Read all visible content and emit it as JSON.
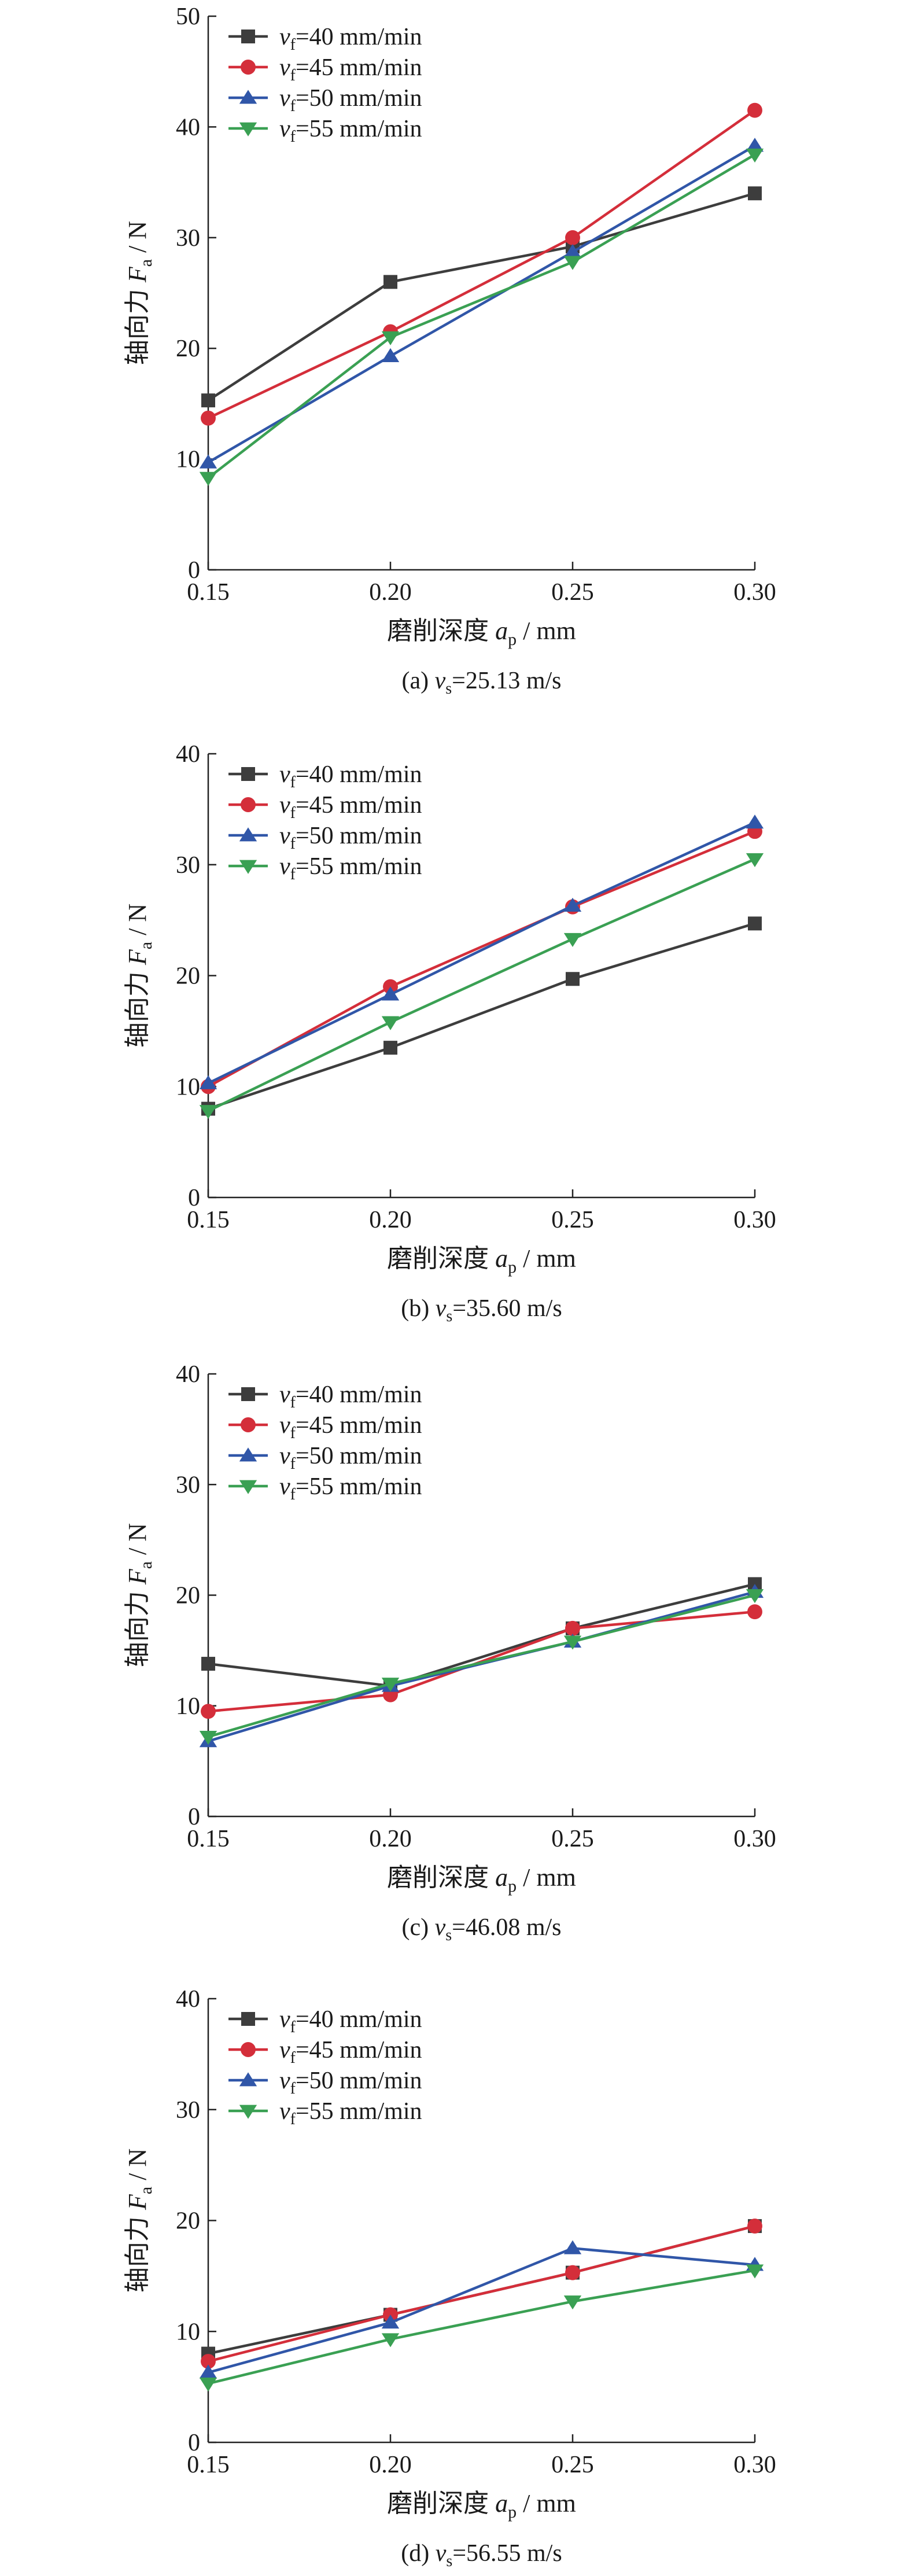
{
  "legend_prefix": "v",
  "legend_sub": "f",
  "chart_data": [
    {
      "type": "line",
      "caption": {
        "label": "(a)",
        "symbol": "v",
        "sub": "s",
        "value": "=25.13 m/s"
      },
      "ylabel": {
        "text": "轴向力",
        "symbol": "F",
        "sub": "a",
        "unit": " / N"
      },
      "xlabel": {
        "text": "磨削深度",
        "symbol": "a",
        "sub": "p",
        "unit": " / mm"
      },
      "x": [
        0.15,
        0.2,
        0.25,
        0.3
      ],
      "xticks": [
        "0.15",
        "0.20",
        "0.25",
        "0.30"
      ],
      "ylim": [
        0,
        50
      ],
      "yticks": [
        0,
        10,
        20,
        30,
        40,
        50
      ],
      "series": [
        {
          "name": "=40 mm/min",
          "color": "#3d3d3d",
          "marker": "square",
          "values": [
            15.3,
            26.0,
            29.2,
            34.0
          ]
        },
        {
          "name": "=45 mm/min",
          "color": "#d42e3a",
          "marker": "circle",
          "values": [
            13.7,
            21.5,
            30.0,
            41.5
          ]
        },
        {
          "name": "=50 mm/min",
          "color": "#3056a8",
          "marker": "triangle-up",
          "values": [
            9.7,
            19.3,
            28.7,
            38.3
          ]
        },
        {
          "name": "=55 mm/min",
          "color": "#3aa053",
          "marker": "triangle-down",
          "values": [
            8.3,
            21.0,
            27.8,
            37.5
          ]
        }
      ]
    },
    {
      "type": "line",
      "caption": {
        "label": "(b)",
        "symbol": "v",
        "sub": "s",
        "value": "=35.60 m/s"
      },
      "ylabel": {
        "text": "轴向力",
        "symbol": "F",
        "sub": "a",
        "unit": " / N"
      },
      "xlabel": {
        "text": "磨削深度",
        "symbol": "a",
        "sub": "p",
        "unit": " / mm"
      },
      "x": [
        0.15,
        0.2,
        0.25,
        0.3
      ],
      "xticks": [
        "0.15",
        "0.20",
        "0.25",
        "0.30"
      ],
      "ylim": [
        0,
        40
      ],
      "yticks": [
        0,
        10,
        20,
        30,
        40
      ],
      "series": [
        {
          "name": "=40 mm/min",
          "color": "#3d3d3d",
          "marker": "square",
          "values": [
            8.0,
            13.5,
            19.7,
            24.7
          ]
        },
        {
          "name": "=45 mm/min",
          "color": "#d42e3a",
          "marker": "circle",
          "values": [
            10.0,
            19.0,
            26.2,
            33.0
          ]
        },
        {
          "name": "=50 mm/min",
          "color": "#3056a8",
          "marker": "triangle-up",
          "values": [
            10.3,
            18.3,
            26.3,
            33.8
          ]
        },
        {
          "name": "=55 mm/min",
          "color": "#3aa053",
          "marker": "triangle-down",
          "values": [
            7.8,
            15.8,
            23.3,
            30.5
          ]
        }
      ]
    },
    {
      "type": "line",
      "caption": {
        "label": "(c)",
        "symbol": "v",
        "sub": "s",
        "value": "=46.08 m/s"
      },
      "ylabel": {
        "text": "轴向力",
        "symbol": "F",
        "sub": "a",
        "unit": " / N"
      },
      "xlabel": {
        "text": "磨削深度",
        "symbol": "a",
        "sub": "p",
        "unit": " / mm"
      },
      "x": [
        0.15,
        0.2,
        0.25,
        0.3
      ],
      "xticks": [
        "0.15",
        "0.20",
        "0.25",
        "0.30"
      ],
      "ylim": [
        0,
        40
      ],
      "yticks": [
        0,
        10,
        20,
        30,
        40
      ],
      "series": [
        {
          "name": "=40 mm/min",
          "color": "#3d3d3d",
          "marker": "square",
          "values": [
            13.8,
            11.8,
            17.0,
            21.0
          ]
        },
        {
          "name": "=45 mm/min",
          "color": "#d42e3a",
          "marker": "circle",
          "values": [
            9.5,
            11.0,
            17.0,
            18.5
          ]
        },
        {
          "name": "=50 mm/min",
          "color": "#3056a8",
          "marker": "triangle-up",
          "values": [
            6.8,
            11.8,
            15.8,
            20.3
          ]
        },
        {
          "name": "=55 mm/min",
          "color": "#3aa053",
          "marker": "triangle-down",
          "values": [
            7.2,
            12.0,
            15.8,
            20.0
          ]
        }
      ]
    },
    {
      "type": "line",
      "caption": {
        "label": "(d)",
        "symbol": "v",
        "sub": "s",
        "value": "=56.55 m/s"
      },
      "ylabel": {
        "text": "轴向力",
        "symbol": "F",
        "sub": "a",
        "unit": " / N"
      },
      "xlabel": {
        "text": "磨削深度",
        "symbol": "a",
        "sub": "p",
        "unit": " / mm"
      },
      "x": [
        0.15,
        0.2,
        0.25,
        0.3
      ],
      "xticks": [
        "0.15",
        "0.20",
        "0.25",
        "0.30"
      ],
      "ylim": [
        0,
        40
      ],
      "yticks": [
        0,
        10,
        20,
        30,
        40
      ],
      "series": [
        {
          "name": "=40 mm/min",
          "color": "#3d3d3d",
          "marker": "square",
          "values": [
            8.0,
            11.5,
            15.3,
            19.5
          ]
        },
        {
          "name": "=45 mm/min",
          "color": "#d42e3a",
          "marker": "circle",
          "values": [
            7.3,
            11.5,
            15.3,
            19.5
          ]
        },
        {
          "name": "=50 mm/min",
          "color": "#3056a8",
          "marker": "triangle-up",
          "values": [
            6.3,
            10.8,
            17.5,
            16.0
          ]
        },
        {
          "name": "=55 mm/min",
          "color": "#3aa053",
          "marker": "triangle-down",
          "values": [
            5.3,
            9.3,
            12.7,
            15.5
          ]
        }
      ]
    }
  ]
}
